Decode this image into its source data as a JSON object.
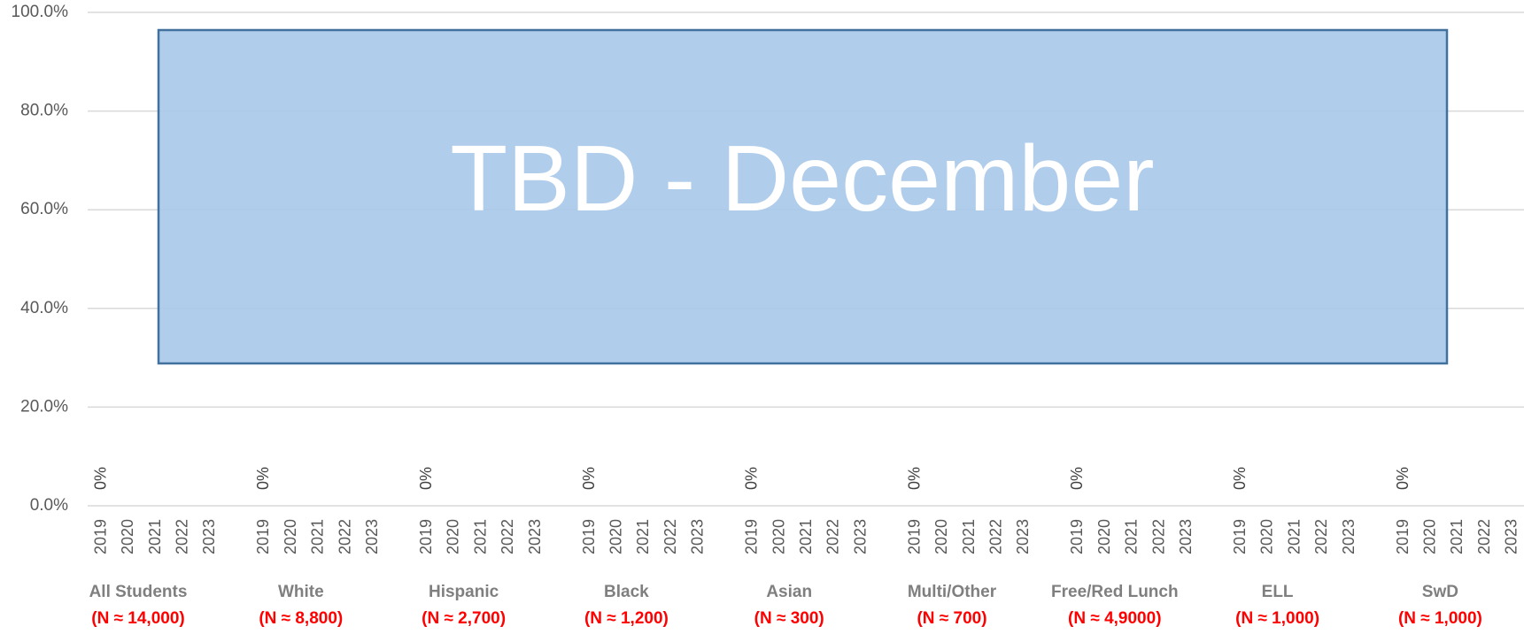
{
  "chart_data": {
    "type": "bar",
    "categories": [
      "2019",
      "2020",
      "2021",
      "2022",
      "2023"
    ],
    "groups": [
      {
        "label": "All Students",
        "n_label": "(N ≈ 14,000)",
        "values": [
          0,
          null,
          null,
          null,
          null
        ],
        "value_labels": [
          "0%",
          null,
          null,
          null,
          null
        ]
      },
      {
        "label": "White",
        "n_label": "(N ≈ 8,800)",
        "values": [
          0,
          null,
          null,
          null,
          null
        ],
        "value_labels": [
          "0%",
          null,
          null,
          null,
          null
        ]
      },
      {
        "label": "Hispanic",
        "n_label": "(N ≈ 2,700)",
        "values": [
          0,
          null,
          null,
          null,
          null
        ],
        "value_labels": [
          "0%",
          null,
          null,
          null,
          null
        ]
      },
      {
        "label": "Black",
        "n_label": "(N ≈ 1,200)",
        "values": [
          0,
          null,
          null,
          null,
          null
        ],
        "value_labels": [
          "0%",
          null,
          null,
          null,
          null
        ]
      },
      {
        "label": "Asian",
        "n_label": "(N ≈ 300)",
        "values": [
          0,
          null,
          null,
          null,
          null
        ],
        "value_labels": [
          "0%",
          null,
          null,
          null,
          null
        ]
      },
      {
        "label": "Multi/Other",
        "n_label": "(N ≈ 700)",
        "values": [
          0,
          null,
          null,
          null,
          null
        ],
        "value_labels": [
          "0%",
          null,
          null,
          null,
          null
        ]
      },
      {
        "label": "Free/Red Lunch",
        "n_label": "(N ≈ 4,9000)",
        "values": [
          0,
          null,
          null,
          null,
          null
        ],
        "value_labels": [
          "0%",
          null,
          null,
          null,
          null
        ]
      },
      {
        "label": "ELL",
        "n_label": "(N ≈ 1,000)",
        "values": [
          0,
          null,
          null,
          null,
          null
        ],
        "value_labels": [
          "0%",
          null,
          null,
          null,
          null
        ]
      },
      {
        "label": "SwD",
        "n_label": "(N ≈ 1,000)",
        "values": [
          0,
          null,
          null,
          null,
          null
        ],
        "value_labels": [
          "0%",
          null,
          null,
          null,
          null
        ]
      }
    ],
    "color": "#5b9bd5",
    "ylim": [
      0,
      100
    ],
    "yticks": [
      {
        "value": 0,
        "label": "0.0%"
      },
      {
        "value": 20,
        "label": "20.0%"
      },
      {
        "value": 40,
        "label": "40.0%"
      },
      {
        "value": 60,
        "label": "60.0%"
      },
      {
        "value": 80,
        "label": "80.0%"
      },
      {
        "value": 100,
        "label": "100.0%"
      }
    ],
    "grid": true,
    "annotation": "TBD - December"
  }
}
